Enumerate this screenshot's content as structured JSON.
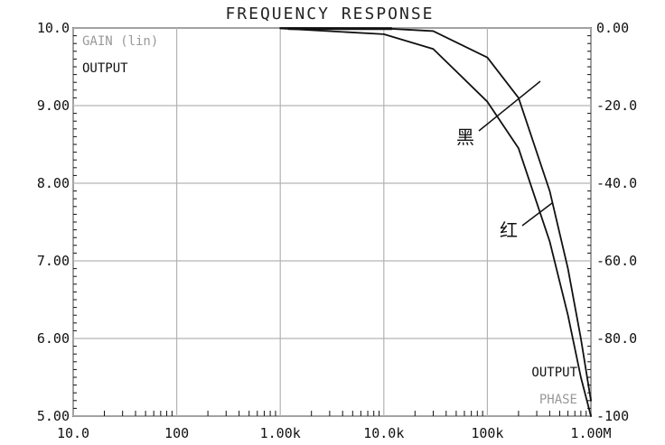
{
  "chart_data": {
    "type": "line",
    "title": "FREQUENCY RESPONSE",
    "xlabel": "",
    "ylabel": "",
    "x_scale": "log",
    "xlim": [
      10,
      1000000
    ],
    "ylim": [
      5,
      10
    ],
    "y2lim": [
      -100,
      0
    ],
    "grid": true,
    "x_tick_labels": [
      "10.0",
      "100",
      "1.00k",
      "10.0k",
      "100k",
      "1.00M"
    ],
    "y_left_ticks": [
      {
        "value": 10,
        "label": "10.0"
      },
      {
        "value": 9,
        "label": "9.00"
      },
      {
        "value": 8,
        "label": "8.00"
      },
      {
        "value": 7,
        "label": "7.00"
      },
      {
        "value": 6,
        "label": "6.00"
      },
      {
        "value": 5,
        "label": "5.00"
      }
    ],
    "y_right_ticks": [
      {
        "value": 0,
        "label": "0.00"
      },
      {
        "value": -20,
        "label": "-20.0"
      },
      {
        "value": -40,
        "label": "-40.0"
      },
      {
        "value": -60,
        "label": "-60.0"
      },
      {
        "value": -80,
        "label": "-80.0"
      },
      {
        "value": -100,
        "label": "-100"
      }
    ],
    "left_axis_labels": [
      "GAIN (lin)",
      "OUTPUT"
    ],
    "right_axis_labels": [
      "OUTPUT",
      "PHASE"
    ],
    "series": [
      {
        "name": "黑",
        "x": [
          1000,
          10000,
          30000,
          100000,
          200000,
          400000,
          600000,
          800000,
          1000000
        ],
        "y": [
          10.0,
          9.995,
          9.96,
          9.62,
          9.1,
          7.9,
          6.9,
          6.0,
          5.2
        ],
        "color": "#111111"
      },
      {
        "name": "红",
        "x": [
          1000,
          10000,
          30000,
          100000,
          200000,
          400000,
          600000,
          800000,
          1000000
        ],
        "y": [
          9.995,
          9.92,
          9.73,
          9.05,
          8.45,
          7.25,
          6.3,
          5.5,
          5.0
        ],
        "color": "#111111"
      }
    ]
  }
}
